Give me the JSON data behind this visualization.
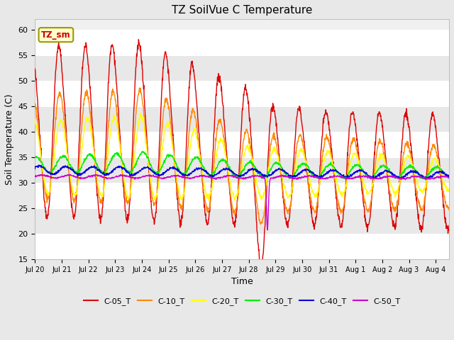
{
  "title": "TZ SoilVue C Temperature",
  "xlabel": "Time",
  "ylabel": "Soil Temperature (C)",
  "ylim": [
    15,
    62
  ],
  "yticks": [
    15,
    20,
    25,
    30,
    35,
    40,
    45,
    50,
    55,
    60
  ],
  "x_labels": [
    "Jul 20",
    "Jul 21",
    "Jul 22",
    "Jul 23",
    "Jul 24",
    "Jul 25",
    "Jul 26",
    "Jul 27",
    "Jul 28",
    "Jul 29",
    "Jul 30",
    "Jul 31",
    "Aug 1",
    "Aug 2",
    "Aug 3",
    "Aug 4"
  ],
  "annotation_text": "TZ_sm",
  "annotation_box_color": "#ffffcc",
  "annotation_text_color": "#cc0000",
  "annotation_border_color": "#999900",
  "series": {
    "C-05_T": {
      "color": "#dd0000",
      "linewidth": 1.0
    },
    "C-10_T": {
      "color": "#ff8800",
      "linewidth": 1.0
    },
    "C-20_T": {
      "color": "#ffff00",
      "linewidth": 1.0
    },
    "C-30_T": {
      "color": "#00ee00",
      "linewidth": 1.0
    },
    "C-40_T": {
      "color": "#0000dd",
      "linewidth": 1.0
    },
    "C-50_T": {
      "color": "#cc00cc",
      "linewidth": 1.0
    }
  },
  "fig_bg_color": "#e8e8e8",
  "plot_bg_color": "#f0f0f0",
  "band_colors": [
    "#ffffff",
    "#e8e8e8"
  ],
  "grid_color": "#ffffff"
}
